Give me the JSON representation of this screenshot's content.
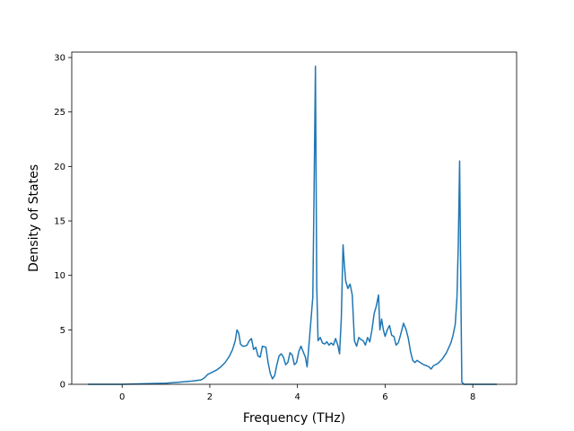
{
  "chart_data": {
    "type": "line",
    "title": "",
    "xlabel": "Frequency (THz)",
    "ylabel": "Density of States",
    "xlim": [
      -1.15,
      9.0
    ],
    "ylim": [
      0,
      30.5
    ],
    "x_ticks": [
      0,
      2,
      4,
      6,
      8
    ],
    "y_ticks": [
      0,
      5,
      10,
      15,
      20,
      25,
      30
    ],
    "grid": false,
    "legend": "none",
    "line_color": "#1f77b4",
    "series": [
      {
        "name": "",
        "x": [
          -0.78,
          -0.5,
          0,
          0.5,
          1.0,
          1.3,
          1.6,
          1.8,
          1.88,
          1.95,
          2.05,
          2.15,
          2.25,
          2.35,
          2.45,
          2.52,
          2.58,
          2.62,
          2.66,
          2.7,
          2.75,
          2.8,
          2.85,
          2.9,
          2.95,
          3.0,
          3.05,
          3.1,
          3.15,
          3.2,
          3.28,
          3.33,
          3.38,
          3.43,
          3.48,
          3.53,
          3.58,
          3.63,
          3.68,
          3.73,
          3.78,
          3.83,
          3.88,
          3.93,
          3.98,
          4.03,
          4.08,
          4.13,
          4.18,
          4.22,
          4.26,
          4.3,
          4.35,
          4.38,
          4.41,
          4.44,
          4.47,
          4.52,
          4.57,
          4.62,
          4.67,
          4.72,
          4.77,
          4.82,
          4.87,
          4.92,
          4.96,
          5.0,
          5.04,
          5.07,
          5.1,
          5.15,
          5.2,
          5.25,
          5.3,
          5.35,
          5.4,
          5.45,
          5.5,
          5.55,
          5.6,
          5.65,
          5.7,
          5.75,
          5.8,
          5.85,
          5.88,
          5.92,
          5.96,
          6.0,
          6.05,
          6.1,
          6.15,
          6.2,
          6.25,
          6.3,
          6.35,
          6.42,
          6.48,
          6.53,
          6.58,
          6.63,
          6.68,
          6.73,
          6.8,
          6.88,
          6.95,
          7.0,
          7.05,
          7.1,
          7.2,
          7.3,
          7.4,
          7.5,
          7.55,
          7.6,
          7.64,
          7.67,
          7.7,
          7.72,
          7.75,
          7.8,
          8.0,
          8.3,
          8.55
        ],
        "y": [
          0,
          0,
          0,
          0.05,
          0.1,
          0.2,
          0.3,
          0.4,
          0.6,
          0.9,
          1.1,
          1.3,
          1.6,
          2.0,
          2.6,
          3.2,
          4.0,
          5.0,
          4.7,
          3.7,
          3.5,
          3.5,
          3.6,
          4.0,
          4.2,
          3.2,
          3.4,
          2.6,
          2.5,
          3.5,
          3.4,
          2.0,
          1.0,
          0.5,
          0.8,
          1.8,
          2.6,
          2.8,
          2.5,
          1.8,
          2.0,
          2.9,
          2.7,
          1.8,
          2.0,
          3.0,
          3.5,
          3.0,
          2.5,
          1.6,
          3.5,
          5.5,
          8.0,
          18.0,
          29.2,
          9.0,
          4.0,
          4.3,
          3.8,
          3.7,
          3.9,
          3.6,
          3.8,
          3.6,
          4.2,
          3.6,
          2.8,
          6.0,
          12.8,
          11.0,
          9.5,
          8.8,
          9.2,
          8.2,
          4.0,
          3.5,
          4.3,
          4.1,
          4.0,
          3.6,
          4.3,
          3.9,
          5.0,
          6.5,
          7.2,
          8.2,
          5.0,
          6.0,
          5.0,
          4.4,
          5.0,
          5.4,
          4.5,
          4.4,
          3.6,
          3.8,
          4.5,
          5.6,
          5.0,
          4.2,
          3.0,
          2.2,
          2.0,
          2.2,
          2.0,
          1.8,
          1.7,
          1.6,
          1.4,
          1.7,
          1.9,
          2.3,
          2.9,
          3.8,
          4.5,
          5.5,
          8.0,
          13.0,
          20.5,
          12.0,
          0.2,
          0,
          0,
          0,
          0
        ]
      }
    ]
  }
}
